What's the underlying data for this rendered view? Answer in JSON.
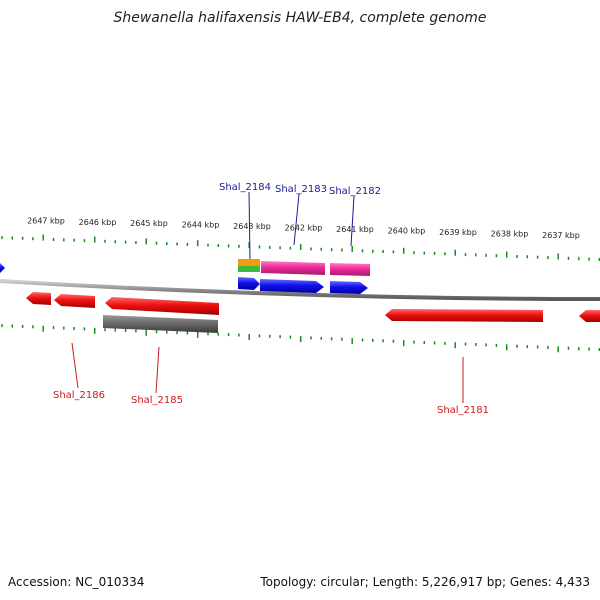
{
  "title": "Shewanella halifaxensis HAW-EB4, complete genome",
  "footer": {
    "accession": "Accession: NC_010334",
    "summary": "Topology: circular; Length: 5,226,917 bp; Genes: 4,433"
  },
  "colors": {
    "backbone": "#8a8a8a",
    "tick": "#1a8a1a",
    "forward_cds": "#1010ee",
    "reverse_cds": "#ee1010",
    "pseudo": "#707070",
    "rna_pink": "#ee2a9a",
    "trna_orange": "#f39a10",
    "misc_green": "#3bbb3b",
    "forward_label": "#1a1a99",
    "reverse_label": "#cc1a1a"
  },
  "chart_data": {
    "type": "genome-map",
    "scale_labels": [
      "2647 kbp",
      "2646 kbp",
      "2645 kbp",
      "2644 kbp",
      "2643 kbp",
      "2642 kbp",
      "2641 kbp",
      "2640 kbp",
      "2639 kbp",
      "2638 kbp",
      "2637 kbp"
    ],
    "forward_labels": [
      "Shal_2184",
      "Shal_2183",
      "Shal_2182"
    ],
    "reverse_labels": [
      "Shal_2186",
      "Shal_2185",
      "Shal_2181"
    ]
  }
}
